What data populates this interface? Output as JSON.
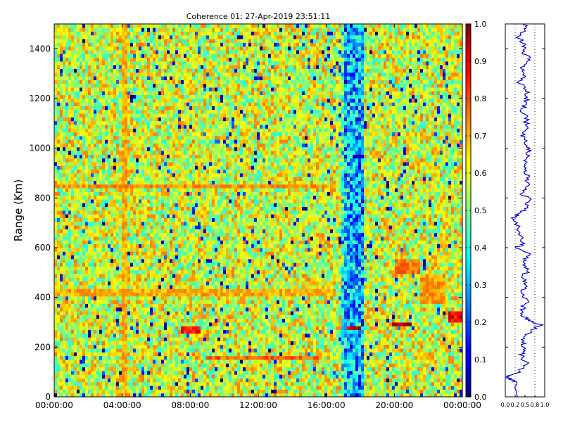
{
  "chart_data": [
    {
      "type": "heatmap",
      "title": "Coherence 01: 27-Apr-2019 23:51:11",
      "ylabel": "Range (Km)",
      "xlabel": "",
      "x_ticks": [
        "00:00:00",
        "04:00:00",
        "08:00:00",
        "12:00:00",
        "16:00:00",
        "20:00:00",
        "00:00:00"
      ],
      "xlim_hours": [
        0,
        24
      ],
      "y_ticks": [
        0,
        200,
        400,
        600,
        800,
        1000,
        1200,
        1400
      ],
      "ylim": [
        0,
        1500
      ],
      "colorbar": {
        "ticks": [
          "0.0",
          "0.1",
          "0.2",
          "0.3",
          "0.4",
          "0.5",
          "0.6",
          "0.7",
          "0.8",
          "0.9",
          "1.0"
        ],
        "range": [
          0,
          1
        ],
        "colormap": "jet"
      },
      "base_level": 0.58,
      "features": [
        {
          "kind": "low-coherence-band",
          "x_hours": [
            17.0,
            18.2
          ],
          "y_km": [
            0,
            1500
          ],
          "value": 0.3
        },
        {
          "kind": "low-coherence-band",
          "x_hours": [
            16.8,
            17.0
          ],
          "y_km": [
            0,
            1500
          ],
          "value": 0.42
        },
        {
          "kind": "high-coherence-column",
          "x_hours": [
            4.0,
            4.3
          ],
          "y_km": [
            0,
            1500
          ],
          "value": 0.72
        },
        {
          "kind": "high-coherence-row",
          "x_hours": [
            0,
            16.5
          ],
          "y_km": [
            835,
            855
          ],
          "value": 0.75
        },
        {
          "kind": "high-coherence-row",
          "x_hours": [
            0,
            16.5
          ],
          "y_km": [
            400,
            440
          ],
          "value": 0.72
        },
        {
          "kind": "echo",
          "x_hours": [
            9.0,
            15.5
          ],
          "y_km": [
            155,
            170
          ],
          "value": 0.8
        },
        {
          "kind": "echo",
          "x_hours": [
            7.5,
            8.6
          ],
          "y_km": [
            250,
            280
          ],
          "value": 0.88
        },
        {
          "kind": "echo",
          "x_hours": [
            17.2,
            18.0
          ],
          "y_km": [
            270,
            285
          ],
          "value": 0.95
        },
        {
          "kind": "echo",
          "x_hours": [
            19.8,
            21.0
          ],
          "y_km": [
            280,
            295
          ],
          "value": 0.98
        },
        {
          "kind": "echo",
          "x_hours": [
            23.2,
            24.0
          ],
          "y_km": [
            300,
            350
          ],
          "value": 0.9
        },
        {
          "kind": "echo",
          "x_hours": [
            20.0,
            21.5
          ],
          "y_km": [
            500,
            560
          ],
          "value": 0.78
        },
        {
          "kind": "echo",
          "x_hours": [
            21.6,
            23.0
          ],
          "y_km": [
            380,
            500
          ],
          "value": 0.74
        }
      ]
    },
    {
      "type": "line",
      "title": "",
      "x_ticks": [
        "0.0",
        "0.2",
        "0.5",
        "0.8",
        "1.0"
      ],
      "xlim": [
        0,
        1
      ],
      "ylim": [
        0,
        1500
      ],
      "grid_x": [
        0.25,
        0.75
      ],
      "color": "#0000cc",
      "series": [
        {
          "y_km": [
            0,
            60,
            80,
            100,
            130,
            170,
            200,
            230,
            260,
            290,
            310,
            330,
            360,
            390,
            420,
            450,
            480,
            510,
            540,
            570,
            600,
            620,
            660,
            700,
            720,
            740,
            760,
            790,
            820,
            850,
            880,
            910,
            940,
            970,
            1000,
            1030,
            1060,
            1090,
            1120,
            1150,
            1180,
            1210,
            1240,
            1270,
            1300,
            1330,
            1360,
            1390,
            1420,
            1450,
            1480,
            1500
          ],
          "x": [
            0.3,
            0.28,
            0.05,
            0.35,
            0.55,
            0.4,
            0.5,
            0.38,
            0.6,
            0.88,
            0.6,
            0.42,
            0.45,
            0.55,
            0.4,
            0.55,
            0.42,
            0.58,
            0.45,
            0.62,
            0.3,
            0.48,
            0.38,
            0.25,
            0.18,
            0.42,
            0.5,
            0.62,
            0.42,
            0.55,
            0.6,
            0.48,
            0.52,
            0.58,
            0.6,
            0.5,
            0.45,
            0.52,
            0.55,
            0.42,
            0.5,
            0.58,
            0.52,
            0.35,
            0.5,
            0.42,
            0.6,
            0.45,
            0.5,
            0.3,
            0.55,
            0.45
          ]
        }
      ]
    }
  ]
}
